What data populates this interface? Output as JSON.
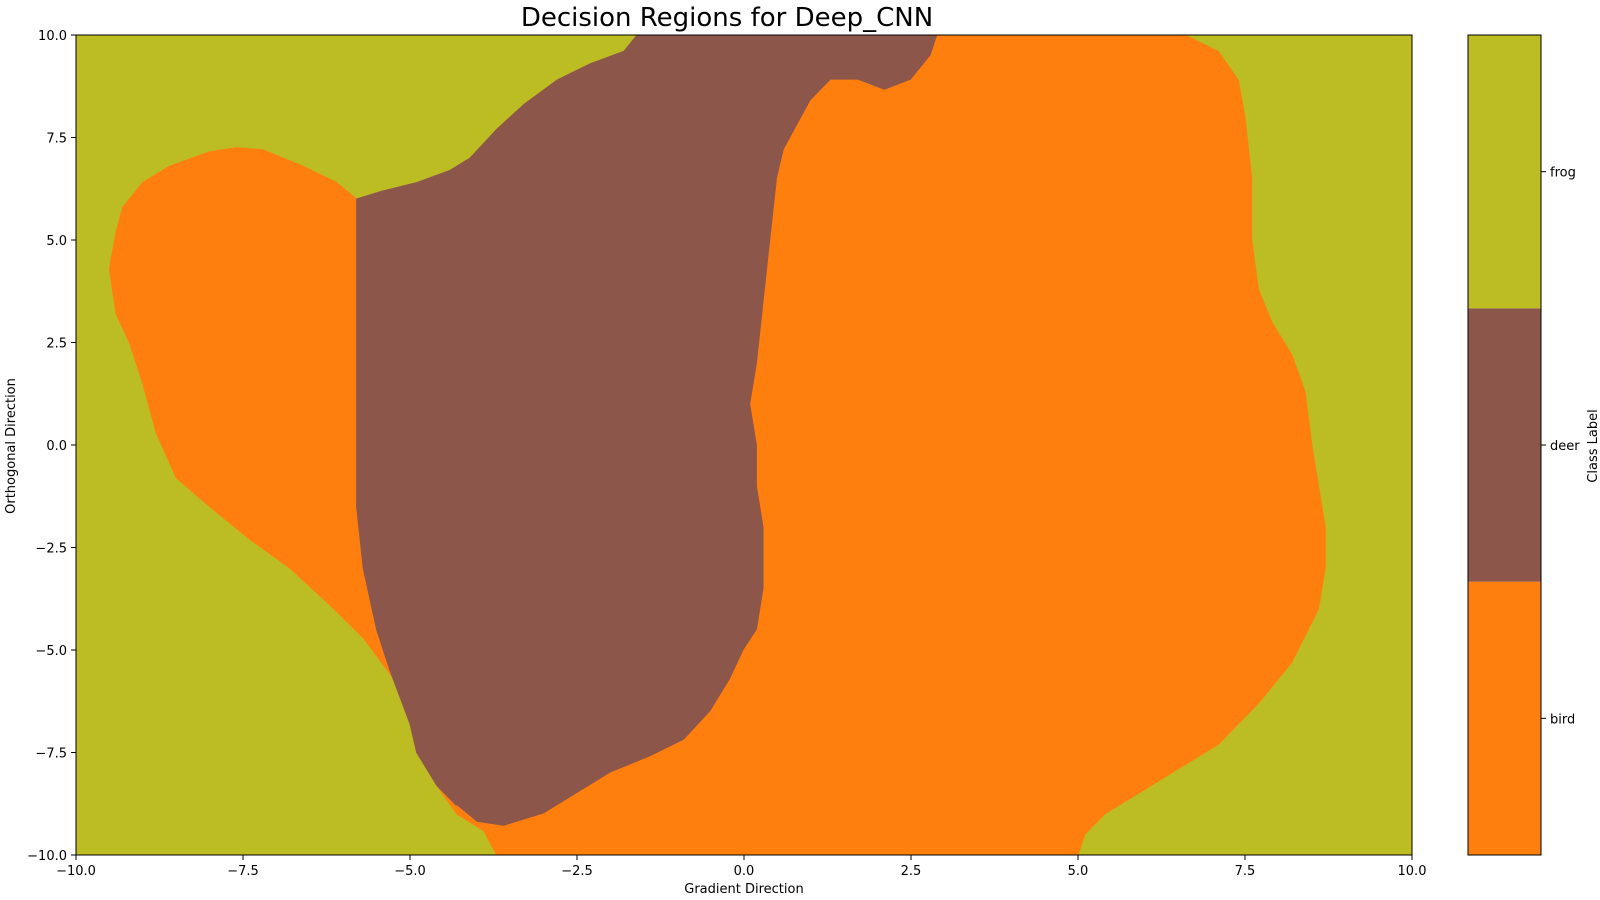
{
  "chart_data": {
    "type": "heatmap",
    "title": "Decision Regions for Deep_CNN",
    "xlabel": "Gradient Direction",
    "ylabel": "Orthogonal Direction",
    "xlim": [
      -10,
      10
    ],
    "ylim": [
      -10,
      10
    ],
    "xticks": [
      -10,
      -7.5,
      -5,
      -2.5,
      0,
      2.5,
      5,
      7.5,
      10
    ],
    "xtick_labels": [
      "−10.0",
      "−7.5",
      "−5.0",
      "−2.5",
      "0.0",
      "2.5",
      "5.0",
      "7.5",
      "10.0"
    ],
    "yticks": [
      -10,
      -7.5,
      -5,
      -2.5,
      0,
      2.5,
      5,
      7.5,
      10
    ],
    "ytick_labels": [
      "−10.0",
      "−7.5",
      "−5.0",
      "−2.5",
      "0.0",
      "2.5",
      "5.0",
      "7.5",
      "10.0"
    ],
    "grid": false,
    "background_class": "frog",
    "regions": [
      {
        "name": "bird-left",
        "class": "bird",
        "points": [
          [
            -5.8,
            6.0
          ],
          [
            -6.1,
            6.4
          ],
          [
            -6.6,
            6.8
          ],
          [
            -7.2,
            7.2
          ],
          [
            -7.6,
            7.25
          ],
          [
            -8.0,
            7.15
          ],
          [
            -8.6,
            6.8
          ],
          [
            -9.0,
            6.4
          ],
          [
            -9.3,
            5.8
          ],
          [
            -9.4,
            5.2
          ],
          [
            -9.5,
            4.3
          ],
          [
            -9.4,
            3.2
          ],
          [
            -9.2,
            2.5
          ],
          [
            -9.0,
            1.5
          ],
          [
            -8.8,
            0.3
          ],
          [
            -8.5,
            -0.8
          ],
          [
            -8.0,
            -1.5
          ],
          [
            -7.4,
            -2.3
          ],
          [
            -6.8,
            -3.0
          ],
          [
            -6.2,
            -3.9
          ],
          [
            -5.7,
            -4.7
          ],
          [
            -5.2,
            -5.8
          ],
          [
            -4.9,
            -6.8
          ],
          [
            -4.6,
            -7.8
          ],
          [
            -4.2,
            -8.7
          ],
          [
            -3.9,
            -9.3
          ],
          [
            -3.7,
            -9.5
          ],
          [
            -3.9,
            -9.4
          ],
          [
            -4.3,
            -9.0
          ],
          [
            -4.6,
            -8.3
          ],
          [
            -4.9,
            -7.5
          ],
          [
            -5.0,
            -6.8
          ],
          [
            -5.3,
            -5.5
          ],
          [
            -5.5,
            -4.5
          ],
          [
            -5.7,
            -3.0
          ],
          [
            -5.8,
            -1.5
          ],
          [
            -5.8,
            0.0
          ],
          [
            -5.8,
            1.5
          ],
          [
            -5.8,
            3.5
          ],
          [
            -5.8,
            5.0
          ]
        ]
      },
      {
        "name": "deer",
        "class": "deer",
        "points": [
          [
            -5.8,
            6.0
          ],
          [
            -5.4,
            6.2
          ],
          [
            -4.9,
            6.4
          ],
          [
            -4.4,
            6.7
          ],
          [
            -4.1,
            7.0
          ],
          [
            -3.7,
            7.7
          ],
          [
            -3.3,
            8.3
          ],
          [
            -2.8,
            8.9
          ],
          [
            -2.3,
            9.3
          ],
          [
            -1.8,
            9.6
          ],
          [
            -1.6,
            10.0
          ],
          [
            2.9,
            10.0
          ],
          [
            2.8,
            9.5
          ],
          [
            2.5,
            8.9
          ],
          [
            2.1,
            8.65
          ],
          [
            1.7,
            8.9
          ],
          [
            1.3,
            8.9
          ],
          [
            1.0,
            8.4
          ],
          [
            0.8,
            7.8
          ],
          [
            0.6,
            7.2
          ],
          [
            0.5,
            6.5
          ],
          [
            0.4,
            5.0
          ],
          [
            0.3,
            3.5
          ],
          [
            0.2,
            2.0
          ],
          [
            0.1,
            1.0
          ],
          [
            0.2,
            0.0
          ],
          [
            0.2,
            -1.0
          ],
          [
            0.3,
            -2.0
          ],
          [
            0.3,
            -3.5
          ],
          [
            0.2,
            -4.5
          ],
          [
            0.0,
            -5.0
          ],
          [
            -0.2,
            -5.7
          ],
          [
            -0.5,
            -6.5
          ],
          [
            -0.9,
            -7.2
          ],
          [
            -1.4,
            -7.6
          ],
          [
            -2.0,
            -8.0
          ],
          [
            -2.5,
            -8.5
          ],
          [
            -3.0,
            -9.0
          ],
          [
            -3.6,
            -9.3
          ],
          [
            -4.0,
            -9.2
          ],
          [
            -4.3,
            -8.8
          ],
          [
            -4.6,
            -8.3
          ],
          [
            -4.9,
            -7.5
          ],
          [
            -5.0,
            -6.8
          ],
          [
            -5.3,
            -5.5
          ],
          [
            -5.5,
            -4.5
          ],
          [
            -5.7,
            -3.0
          ],
          [
            -5.8,
            -1.5
          ],
          [
            -5.8,
            0.0
          ],
          [
            -5.8,
            1.5
          ],
          [
            -5.8,
            3.5
          ],
          [
            -5.8,
            5.0
          ]
        ]
      },
      {
        "name": "bird-main",
        "class": "bird",
        "points": [
          [
            2.9,
            10.0
          ],
          [
            2.8,
            9.5
          ],
          [
            2.5,
            8.9
          ],
          [
            2.1,
            8.65
          ],
          [
            1.7,
            8.9
          ],
          [
            1.3,
            8.9
          ],
          [
            1.0,
            8.4
          ],
          [
            0.8,
            7.8
          ],
          [
            0.6,
            7.2
          ],
          [
            0.5,
            6.5
          ],
          [
            0.4,
            5.0
          ],
          [
            0.3,
            3.5
          ],
          [
            0.2,
            2.0
          ],
          [
            0.1,
            1.0
          ],
          [
            0.2,
            0.0
          ],
          [
            0.2,
            -1.0
          ],
          [
            0.3,
            -2.0
          ],
          [
            0.3,
            -3.5
          ],
          [
            0.2,
            -4.5
          ],
          [
            0.0,
            -5.0
          ],
          [
            -0.2,
            -5.7
          ],
          [
            -0.5,
            -6.5
          ],
          [
            -0.9,
            -7.2
          ],
          [
            -1.4,
            -7.6
          ],
          [
            -2.0,
            -8.0
          ],
          [
            -2.5,
            -8.5
          ],
          [
            -3.0,
            -9.0
          ],
          [
            -3.6,
            -9.3
          ],
          [
            -4.0,
            -9.2
          ],
          [
            -4.3,
            -8.8
          ],
          [
            -3.9,
            -9.4
          ],
          [
            -3.7,
            -10.0
          ],
          [
            5.0,
            -10.0
          ],
          [
            5.1,
            -9.5
          ],
          [
            5.4,
            -9.0
          ],
          [
            5.9,
            -8.5
          ],
          [
            6.4,
            -8.0
          ],
          [
            7.1,
            -7.3
          ],
          [
            7.7,
            -6.3
          ],
          [
            8.2,
            -5.3
          ],
          [
            8.6,
            -4.0
          ],
          [
            8.7,
            -3.0
          ],
          [
            8.7,
            -2.0
          ],
          [
            8.6,
            -1.0
          ],
          [
            8.5,
            0.0
          ],
          [
            8.4,
            1.3
          ],
          [
            8.2,
            2.2
          ],
          [
            7.9,
            3.0
          ],
          [
            7.7,
            3.8
          ],
          [
            7.6,
            5.0
          ],
          [
            7.6,
            6.5
          ],
          [
            7.5,
            8.0
          ],
          [
            7.4,
            8.9
          ],
          [
            7.1,
            9.6
          ],
          [
            6.6,
            10.0
          ]
        ]
      }
    ],
    "colorbar": {
      "label": "Class Label",
      "classes": [
        {
          "name": "bird",
          "color": "#ff7f0e"
        },
        {
          "name": "deer",
          "color": "#8c564b"
        },
        {
          "name": "frog",
          "color": "#bcbd22"
        }
      ]
    }
  }
}
